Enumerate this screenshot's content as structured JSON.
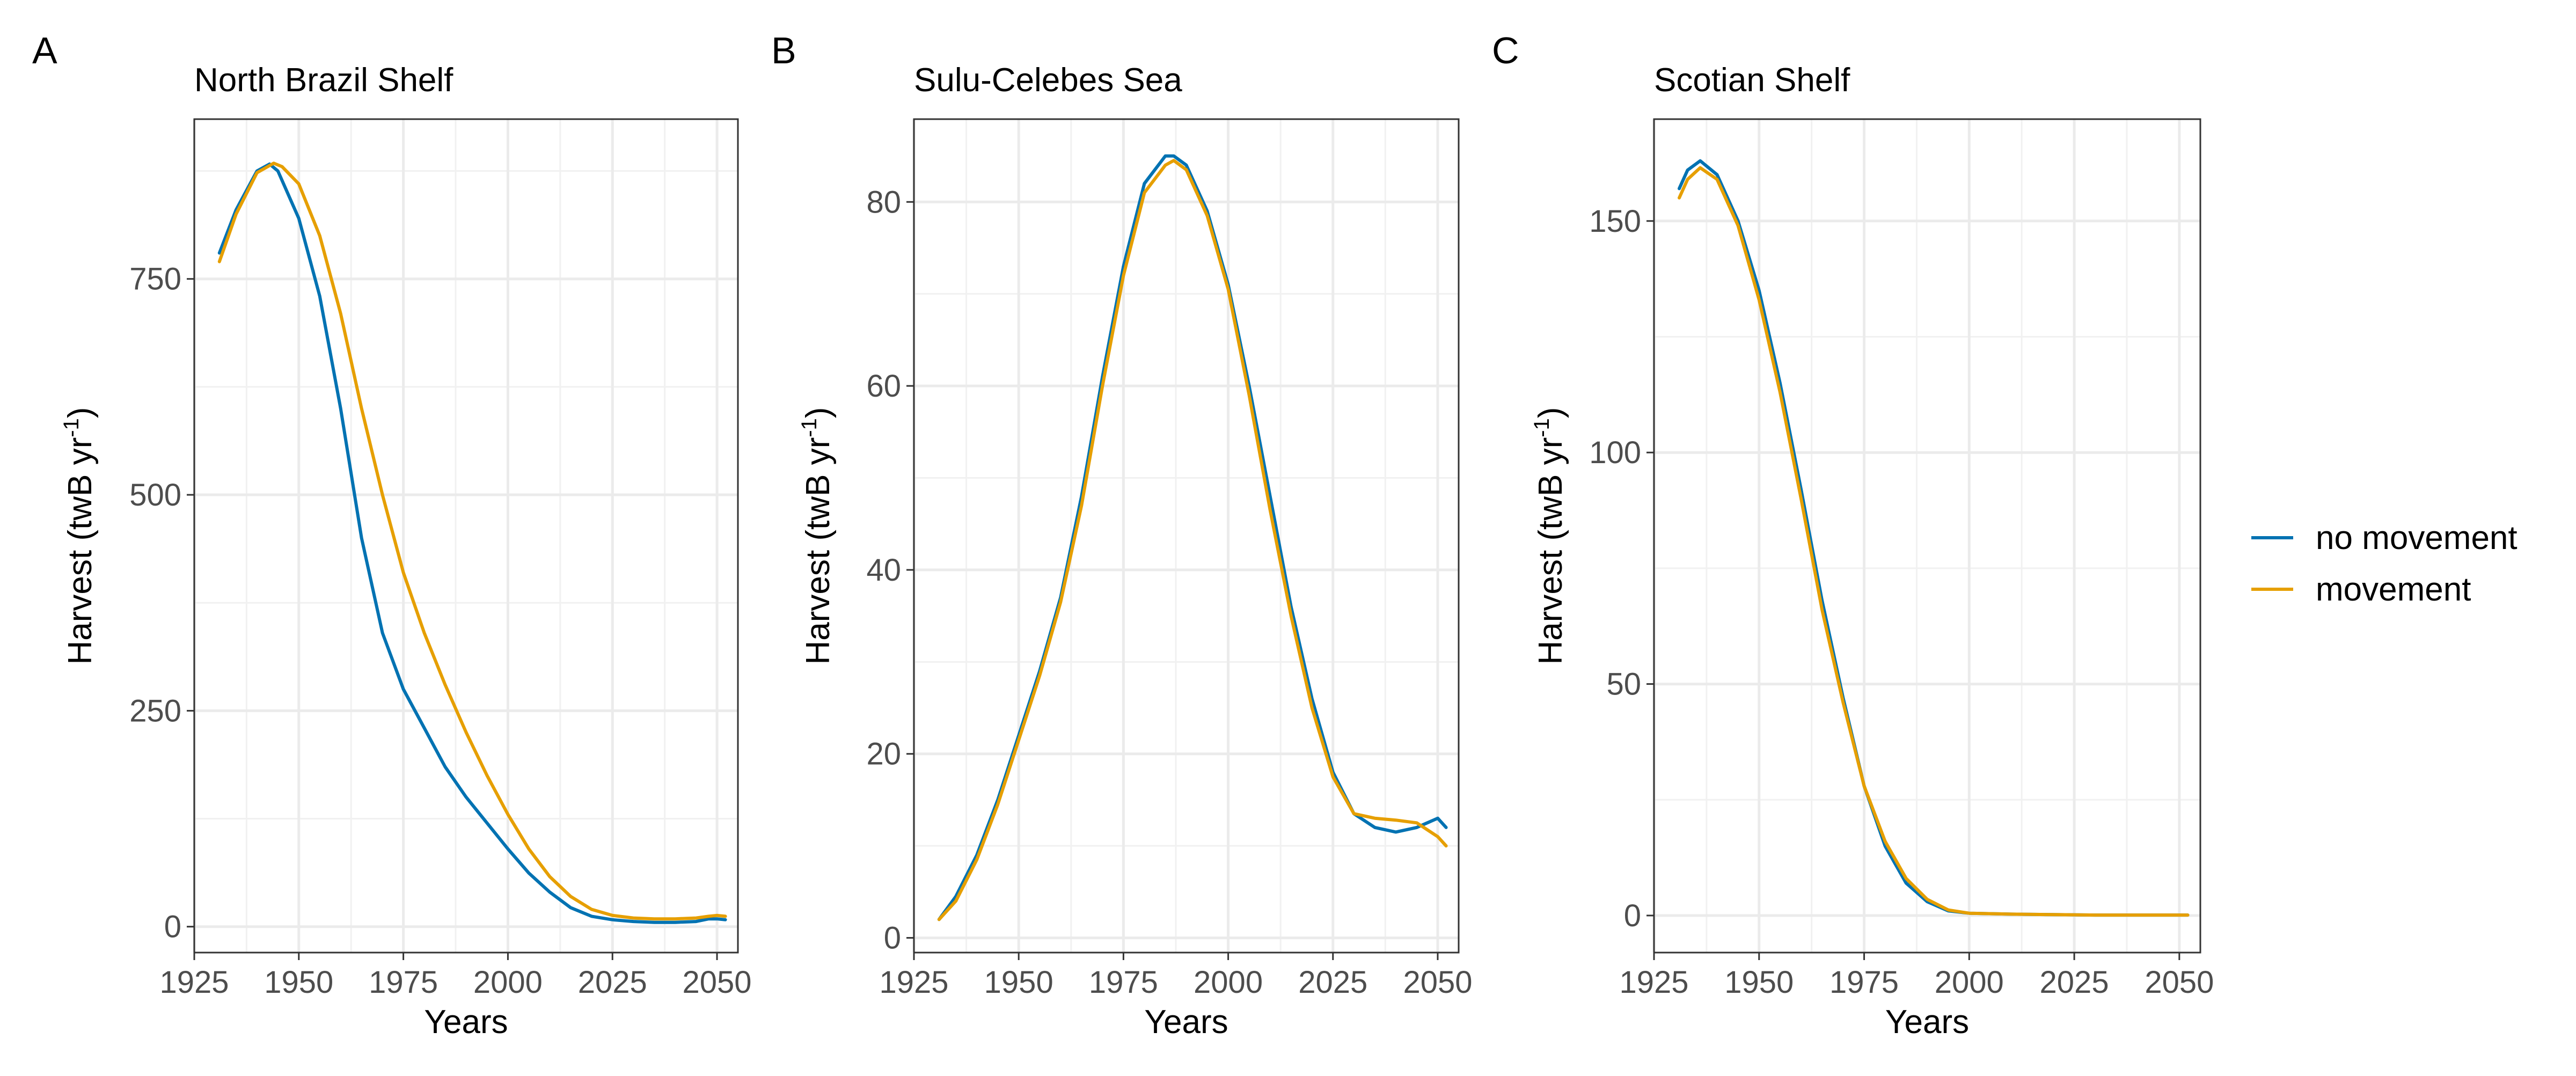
{
  "figure": {
    "panels": [
      {
        "letter": "A",
        "title": "North Brazil Shelf"
      },
      {
        "letter": "B",
        "title": "Sulu-Celebes Sea"
      },
      {
        "letter": "C",
        "title": "Scotian Shelf"
      }
    ],
    "xlabel": "Years",
    "ylabel": "Harvest (twB yr",
    "ylabel_sup": "-1",
    "ylabel_close": ")",
    "legend": {
      "placement": "right",
      "items": [
        {
          "label": "no movement",
          "color": "#0072B2"
        },
        {
          "label": "movement",
          "color": "#E69F00"
        }
      ]
    }
  },
  "chart_data": [
    {
      "type": "line",
      "title": "North Brazil Shelf",
      "xlabel": "Years",
      "ylabel": "Harvest (twB yr-1)",
      "xlim": [
        1925,
        2055
      ],
      "ylim": [
        -30,
        935
      ],
      "xticks": [
        1925,
        1950,
        1975,
        2000,
        2025,
        2050
      ],
      "yticks": [
        0,
        250,
        500,
        750
      ],
      "grid": true,
      "series": [
        {
          "name": "no movement",
          "color": "#0072B2",
          "x": [
            1931,
            1935,
            1940,
            1943,
            1945,
            1950,
            1955,
            1960,
            1965,
            1970,
            1975,
            1980,
            1985,
            1990,
            1995,
            2000,
            2005,
            2010,
            2015,
            2020,
            2025,
            2030,
            2035,
            2040,
            2045,
            2048,
            2050,
            2052
          ],
          "y": [
            780,
            830,
            875,
            883,
            875,
            820,
            730,
            600,
            450,
            340,
            275,
            230,
            185,
            150,
            120,
            90,
            62,
            40,
            22,
            12,
            8,
            6,
            5,
            5,
            6,
            9,
            9,
            8
          ]
        },
        {
          "name": "movement",
          "color": "#E69F00",
          "x": [
            1931,
            1935,
            1940,
            1944,
            1946,
            1950,
            1955,
            1960,
            1965,
            1970,
            1975,
            1980,
            1985,
            1990,
            1995,
            2000,
            2005,
            2010,
            2015,
            2020,
            2025,
            2030,
            2035,
            2040,
            2045,
            2048,
            2050,
            2052
          ],
          "y": [
            770,
            825,
            873,
            884,
            880,
            860,
            800,
            710,
            600,
            500,
            410,
            340,
            280,
            225,
            175,
            130,
            90,
            58,
            35,
            20,
            13,
            10,
            9,
            9,
            10,
            12,
            13,
            12
          ]
        }
      ]
    },
    {
      "type": "line",
      "title": "Sulu-Celebes Sea",
      "xlabel": "Years",
      "ylabel": "Harvest (twB yr-1)",
      "xlim": [
        1925,
        2055
      ],
      "ylim": [
        -1.6,
        89
      ],
      "xticks": [
        1925,
        1950,
        1975,
        2000,
        2025,
        2050
      ],
      "yticks": [
        0,
        20,
        40,
        60,
        80
      ],
      "grid": true,
      "series": [
        {
          "name": "no movement",
          "color": "#0072B2",
          "x": [
            1931,
            1935,
            1940,
            1945,
            1950,
            1955,
            1960,
            1965,
            1970,
            1975,
            1980,
            1985,
            1987,
            1990,
            1995,
            2000,
            2005,
            2010,
            2015,
            2020,
            2025,
            2030,
            2035,
            2040,
            2045,
            2050,
            2052
          ],
          "y": [
            2,
            4.5,
            9,
            15,
            22,
            29,
            37,
            48,
            61,
            73,
            82,
            85,
            85,
            84,
            79,
            71,
            60,
            48,
            36,
            26,
            18,
            13.5,
            12,
            11.5,
            12,
            13,
            12
          ]
        },
        {
          "name": "movement",
          "color": "#E69F00",
          "x": [
            1931,
            1935,
            1940,
            1945,
            1950,
            1955,
            1960,
            1965,
            1970,
            1975,
            1980,
            1985,
            1987,
            1990,
            1995,
            2000,
            2005,
            2010,
            2015,
            2020,
            2025,
            2030,
            2035,
            2040,
            2045,
            2050,
            2052
          ],
          "y": [
            2,
            4,
            8.5,
            14.5,
            21.5,
            28.5,
            36.5,
            47,
            60,
            72,
            81,
            84,
            84.5,
            83.5,
            78.5,
            70.5,
            59,
            46.5,
            35,
            25,
            17.5,
            13.5,
            13,
            12.8,
            12.5,
            11,
            10
          ]
        }
      ]
    },
    {
      "type": "line",
      "title": "Scotian Shelf",
      "xlabel": "Years",
      "ylabel": "Harvest (twB yr-1)",
      "xlim": [
        1925,
        2055
      ],
      "ylim": [
        -8,
        172
      ],
      "xticks": [
        1925,
        1950,
        1975,
        2000,
        2025,
        2050
      ],
      "yticks": [
        0,
        50,
        100,
        150
      ],
      "grid": true,
      "series": [
        {
          "name": "no movement",
          "color": "#0072B2",
          "x": [
            1931,
            1933,
            1936,
            1940,
            1945,
            1950,
            1955,
            1960,
            1965,
            1970,
            1975,
            1980,
            1985,
            1990,
            1995,
            2000,
            2010,
            2020,
            2030,
            2040,
            2050,
            2052
          ],
          "y": [
            157,
            161,
            163,
            160,
            150,
            135,
            115,
            92,
            68,
            47,
            28,
            15,
            7,
            3,
            1,
            0.5,
            0.3,
            0.2,
            0.1,
            0.1,
            0.1,
            0.1
          ]
        },
        {
          "name": "movement",
          "color": "#E69F00",
          "x": [
            1931,
            1933,
            1936,
            1940,
            1945,
            1950,
            1955,
            1960,
            1965,
            1970,
            1975,
            1980,
            1985,
            1990,
            1995,
            2000,
            2010,
            2020,
            2030,
            2040,
            2050,
            2052
          ],
          "y": [
            155,
            159,
            161.5,
            159,
            149,
            133,
            113,
            90,
            66,
            46,
            28,
            16,
            8,
            3.5,
            1.2,
            0.5,
            0.3,
            0.2,
            0.1,
            0.1,
            0.1,
            0.1
          ]
        }
      ]
    }
  ]
}
